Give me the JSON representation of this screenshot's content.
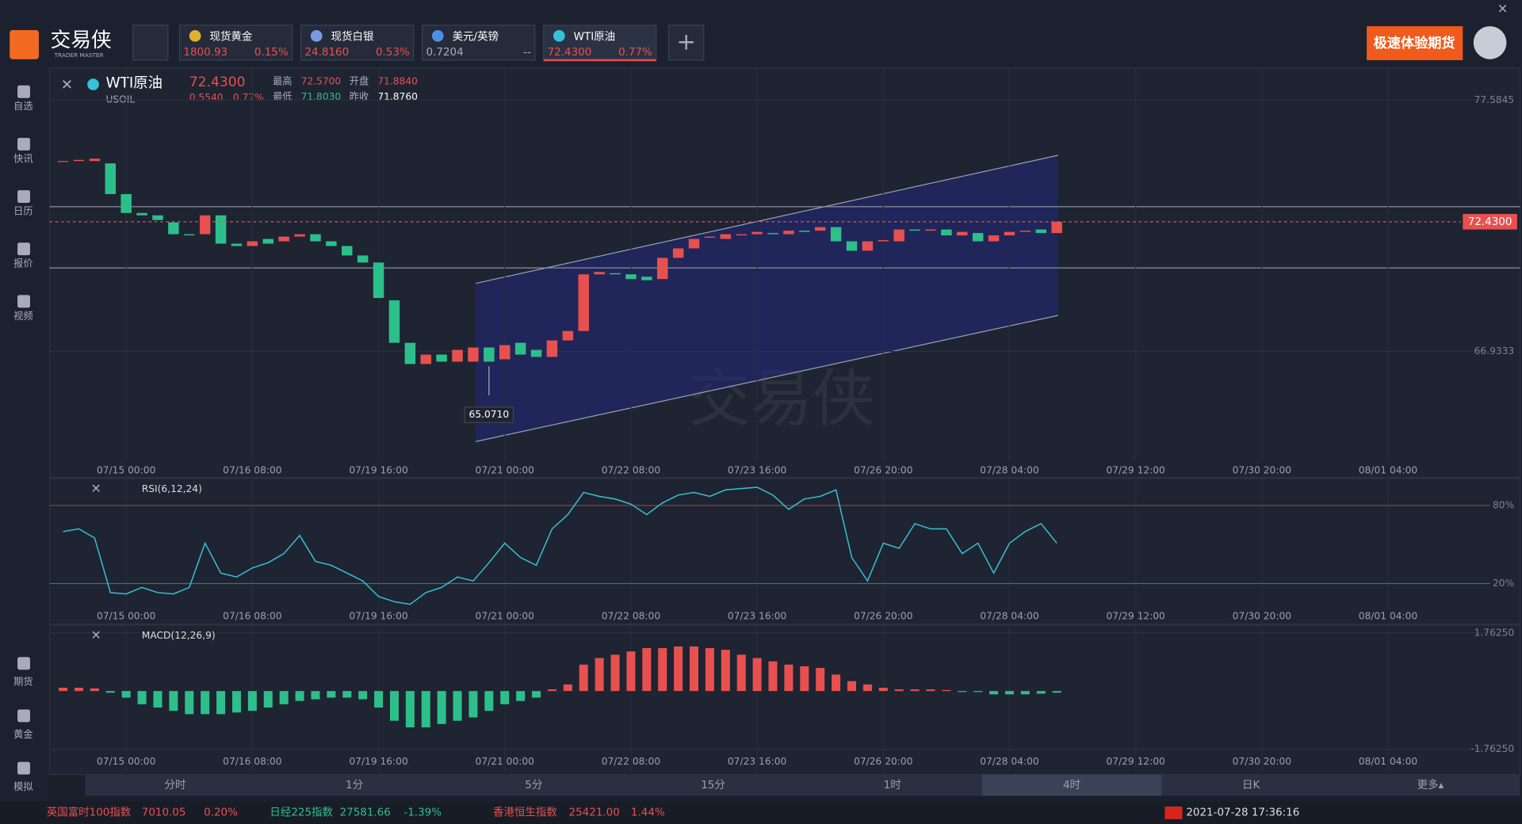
{
  "app": {
    "logo": "交易侠",
    "logo_sub": "TRADER MASTER"
  },
  "tabs": [
    {
      "name": "现货黄金",
      "price": "1800.93",
      "change": "0.15%"
    },
    {
      "name": "现货白银",
      "price": "24.8160",
      "change": "0.53%"
    },
    {
      "name": "美元/英镑",
      "price": "0.7204",
      "change": "--"
    },
    {
      "name": "WTI原油",
      "price": "72.4300",
      "change": "0.77%"
    }
  ],
  "banner": "极速体验期货",
  "sidebar_top": [
    "自选",
    "快讯",
    "日历",
    "报价",
    "视频"
  ],
  "sidebar_bottom": [
    "期货",
    "黄金",
    "模拟"
  ],
  "quote": {
    "name": "WTI原油",
    "code": "USOIL",
    "price": "72.4300",
    "change": "0.5540",
    "change_pct": "0.77%",
    "high_label": "最高",
    "high": "72.5700",
    "open_label": "开盘",
    "open": "71.8840",
    "low_label": "最低",
    "low": "71.8030",
    "prev_label": "昨收",
    "prev": "71.8760"
  },
  "timeframes": [
    "分时",
    "1分",
    "5分",
    "15分",
    "1时",
    "4时",
    "日K",
    "更多▴"
  ],
  "selected_timeframe": 5,
  "ticker": [
    {
      "name": "英国富时100指数",
      "value": "7010.05",
      "change": "0.20%"
    },
    {
      "name": "日经225指数",
      "value": "27581.66",
      "change": "-1.39%"
    },
    {
      "name": "香港恒生指数",
      "value": "25421.00",
      "change": "1.44%"
    }
  ],
  "datetime": "2021-07-28 17:36:16",
  "watermark": "交易侠",
  "chart_data": [
    {
      "type": "candlestick",
      "up_color": "#e8504f",
      "down_color": "#2dbf8a",
      "x_labels": [
        "07/15 00:00",
        "07/16 08:00",
        "07/19 16:00",
        "07/21 00:00",
        "07/22 08:00",
        "07/23 16:00",
        "07/26 20:00",
        "07/28 04:00",
        "07/29 12:00",
        "07/30 20:00",
        "08/01 04:00"
      ],
      "ylim": [
        62.29,
        78.74
      ],
      "yticks": [
        77.5845,
        66.9333
      ],
      "last_price": {
        "value": 72.43,
        "label": "72.4300"
      },
      "low_marker": {
        "value": 65.071,
        "label": "65.0710",
        "index": 27
      },
      "open": [
        75.0,
        75.0,
        75.0,
        74.9,
        73.6,
        72.8,
        72.7,
        72.4,
        71.9,
        71.9,
        72.7,
        71.5,
        71.4,
        71.7,
        71.6,
        71.8,
        71.9,
        71.6,
        71.4,
        71.0,
        70.7,
        69.1,
        67.3,
        66.4,
        66.8,
        66.5,
        66.5,
        67.1,
        66.6,
        67.3,
        67.0,
        66.7,
        67.4,
        67.8,
        70.2,
        70.25,
        70.2,
        70.1,
        70.0,
        70.9,
        71.3,
        71.75,
        71.7,
        71.85,
        71.9,
        71.95,
        71.9,
        72.05,
        72.05,
        72.2,
        71.6,
        71.2,
        71.6,
        71.6,
        72.1,
        72.05,
        72.1,
        71.85,
        71.95,
        71.6,
        71.85,
        72.0,
        72.1,
        71.95
      ],
      "close": [
        75.0,
        75.05,
        75.1,
        73.6,
        72.8,
        72.7,
        72.5,
        71.9,
        71.85,
        72.7,
        71.5,
        71.4,
        71.6,
        71.5,
        71.8,
        71.9,
        71.6,
        71.4,
        71.0,
        70.7,
        69.2,
        67.3,
        66.4,
        66.8,
        66.5,
        67.0,
        67.1,
        66.5,
        67.2,
        66.8,
        66.7,
        67.4,
        67.8,
        70.2,
        70.3,
        70.2,
        70.0,
        69.95,
        70.9,
        71.3,
        71.7,
        71.8,
        71.9,
        71.9,
        72.0,
        71.9,
        72.05,
        72.0,
        72.2,
        71.6,
        71.2,
        71.6,
        71.65,
        72.1,
        72.05,
        72.1,
        71.85,
        72.0,
        71.6,
        71.85,
        72.0,
        72.05,
        71.95,
        72.43
      ]
    },
    {
      "type": "line",
      "title": "RSI(6,12,24)",
      "color": "#35c3d6",
      "x_labels": [
        "07/15 00:00",
        "07/16 08:00",
        "07/19 16:00",
        "07/21 00:00",
        "07/22 08:00",
        "07/23 16:00",
        "07/26 20:00",
        "07/28 04:00",
        "07/29 12:00",
        "07/30 20:00",
        "08/01 04:00"
      ],
      "ylim": [
        0,
        100
      ],
      "yticks": [
        {
          "value": 80,
          "label": "80%"
        },
        {
          "value": 20,
          "label": "20%"
        }
      ],
      "values": [
        60,
        62,
        55,
        13,
        12,
        17,
        13,
        12,
        17,
        51,
        28,
        25,
        32,
        36,
        43,
        57,
        37,
        34,
        28,
        22,
        10,
        6,
        4,
        13,
        17,
        25,
        22,
        36,
        51,
        40,
        34,
        62,
        73,
        90,
        87,
        85,
        81,
        73,
        82,
        88,
        90,
        87,
        92,
        93,
        94,
        88,
        77,
        85,
        87,
        92,
        40,
        22,
        51,
        47,
        66,
        62,
        62,
        43,
        51,
        28,
        51,
        60,
        66,
        51
      ]
    },
    {
      "type": "bar",
      "title": "MACD(12,26,9)",
      "up_color": "#e8504f",
      "down_color": "#2dbf8a",
      "x_labels": [
        "07/15 00:00",
        "07/16 08:00",
        "07/19 16:00",
        "07/21 00:00",
        "07/22 08:00",
        "07/23 16:00",
        "07/26 20:00",
        "07/28 04:00",
        "07/29 12:00",
        "07/30 20:00",
        "08/01 04:00"
      ],
      "ylim": [
        -2.44,
        1.97
      ],
      "yticks": [
        {
          "value": 1.7625,
          "label": "1.76250"
        },
        {
          "value": -1.7625,
          "label": "-1.76250"
        }
      ],
      "values": [
        0.1,
        0.1,
        0.08,
        -0.05,
        -0.2,
        -0.4,
        -0.5,
        -0.6,
        -0.7,
        -0.7,
        -0.7,
        -0.65,
        -0.6,
        -0.5,
        -0.4,
        -0.3,
        -0.25,
        -0.2,
        -0.2,
        -0.25,
        -0.5,
        -0.9,
        -1.1,
        -1.1,
        -1.0,
        -0.9,
        -0.8,
        -0.6,
        -0.4,
        -0.3,
        -0.2,
        0.05,
        0.2,
        0.8,
        1.0,
        1.1,
        1.2,
        1.3,
        1.3,
        1.35,
        1.35,
        1.3,
        1.25,
        1.1,
        1.0,
        0.9,
        0.8,
        0.75,
        0.7,
        0.5,
        0.3,
        0.2,
        0.1,
        0.05,
        0.05,
        0.05,
        0.03,
        -0.02,
        -0.03,
        -0.1,
        -0.1,
        -0.1,
        -0.08,
        -0.05
      ]
    }
  ]
}
